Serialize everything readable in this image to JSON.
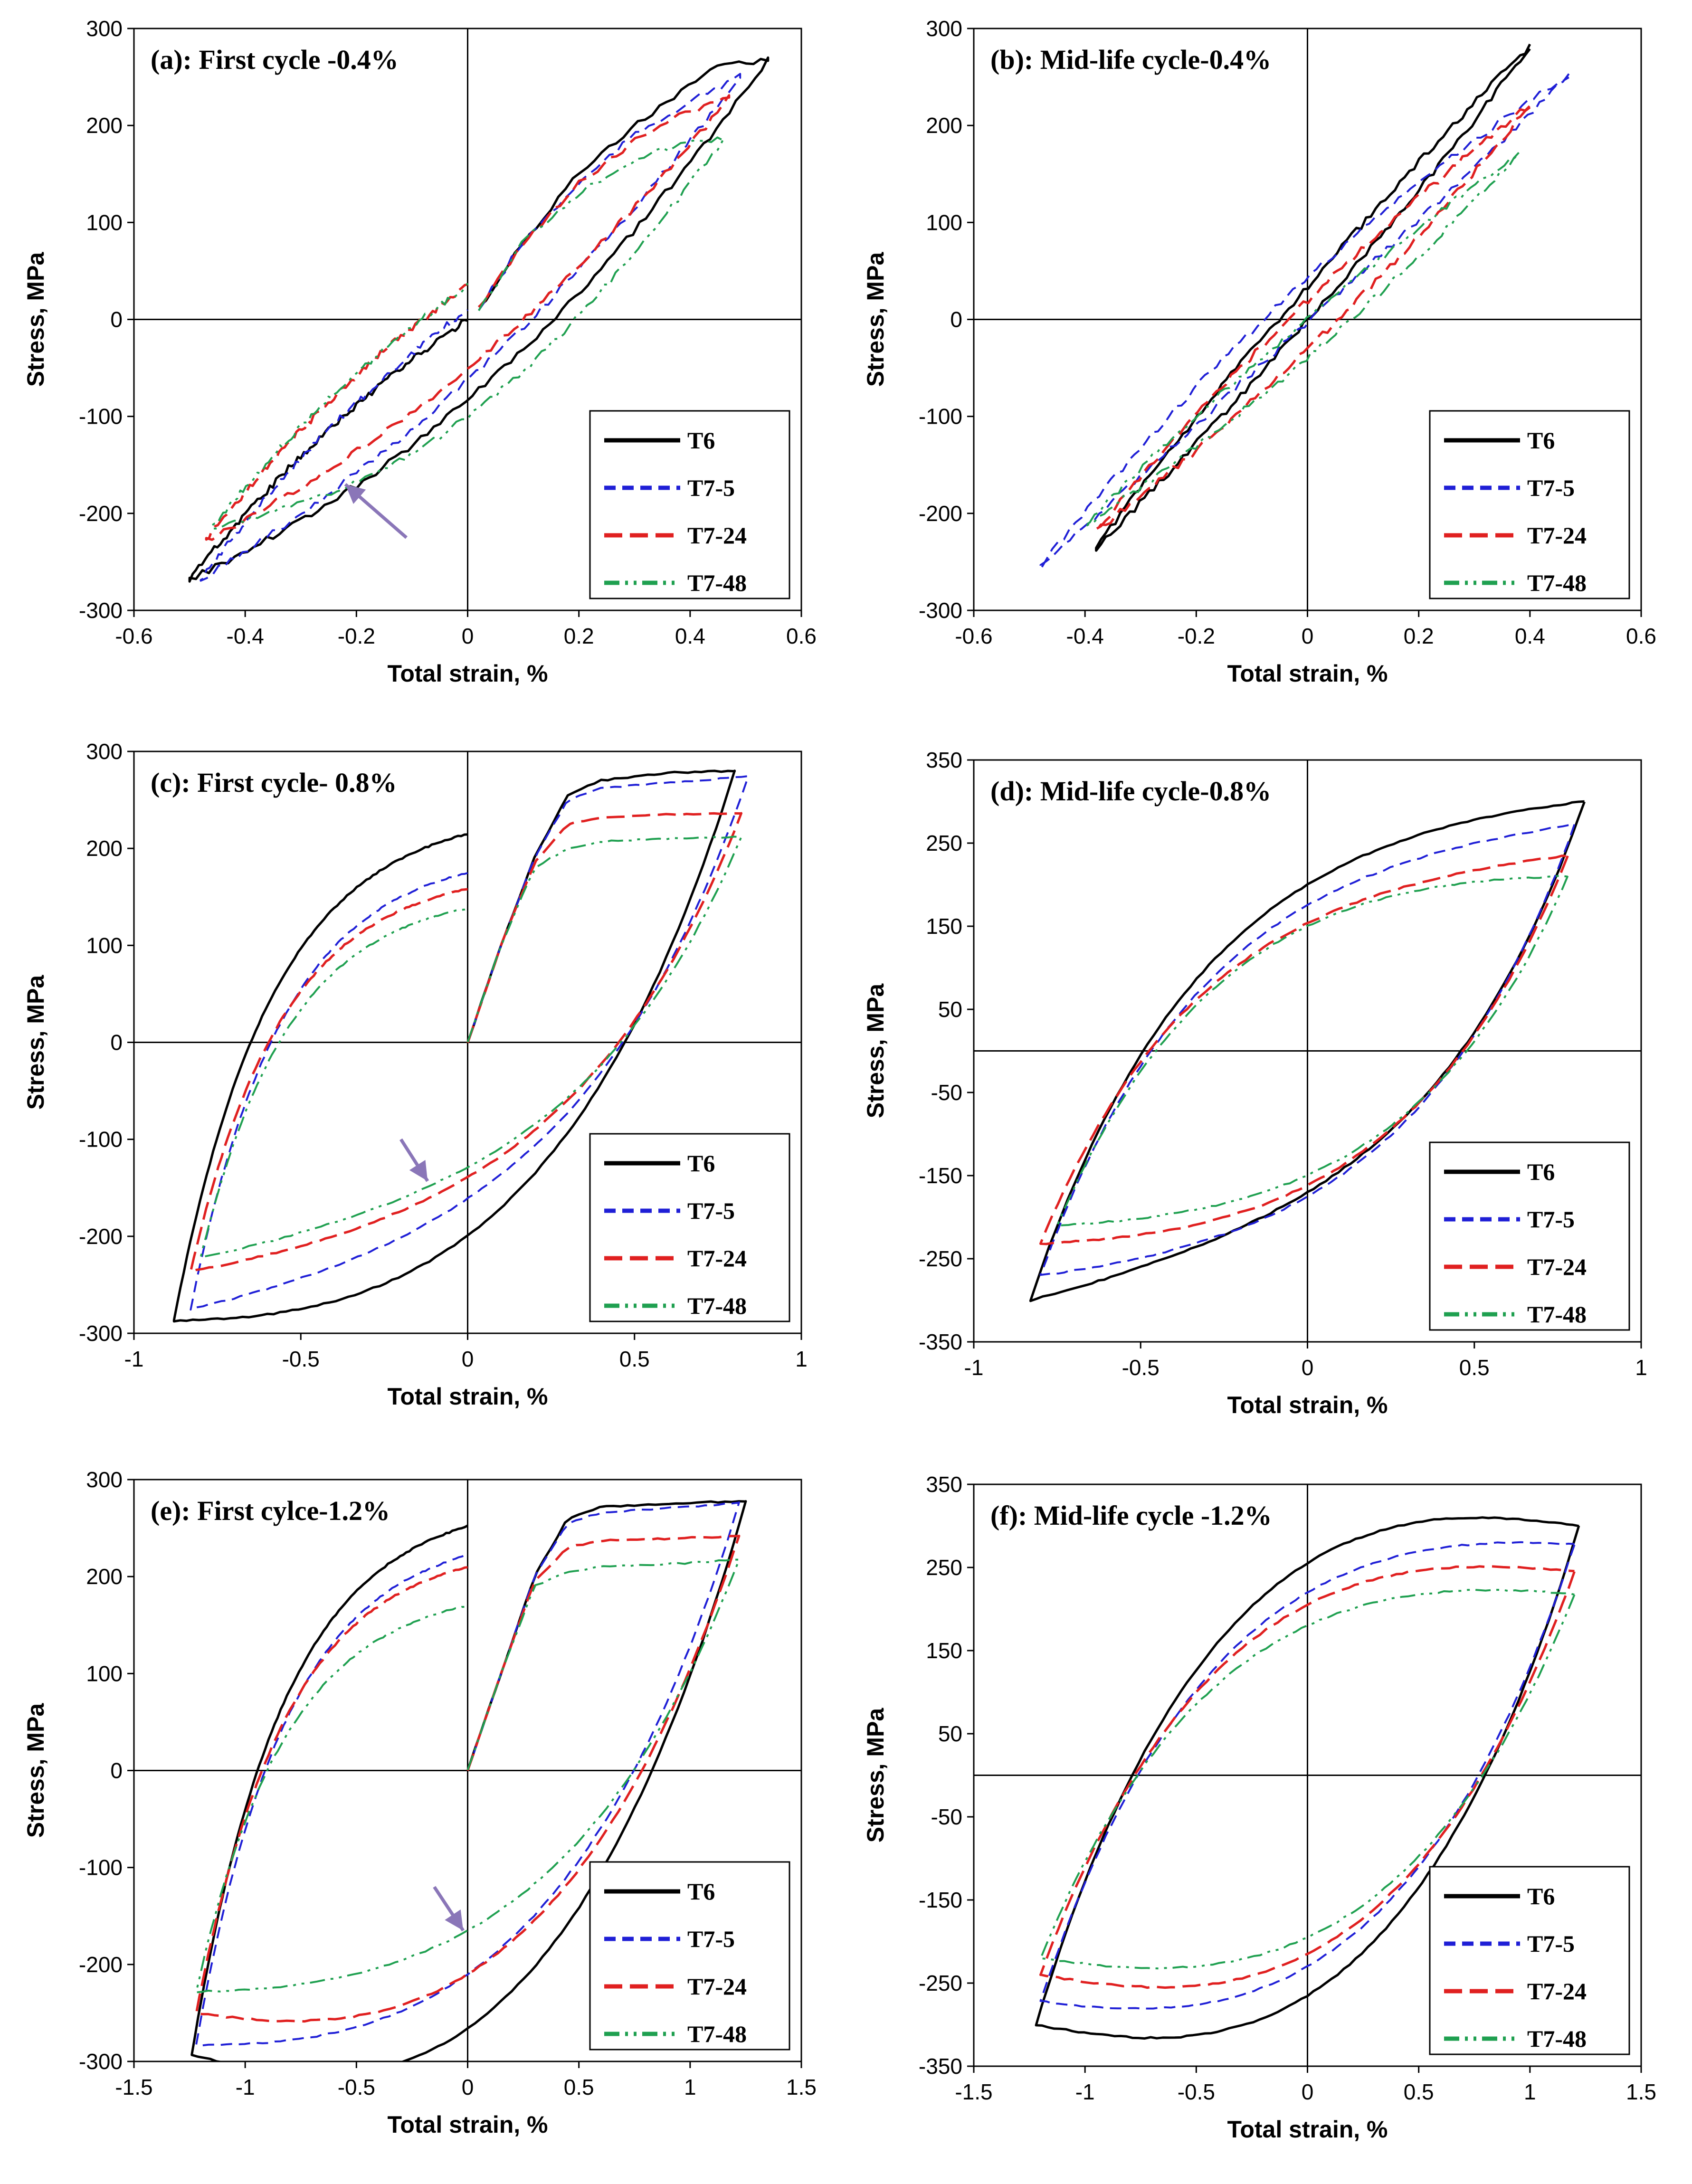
{
  "figure": {
    "description_type": "hysteresis loops",
    "colors": {
      "T6": "#000000",
      "T7-5": "#1f1fd6",
      "T7-24": "#e02020",
      "T7-48": "#1fa050",
      "arrow": "#8a76b8"
    }
  },
  "chart_data": [
    {
      "id": "a",
      "type": "line",
      "title": "(a): First cycle -0.4%",
      "xlabel": "Total strain, %",
      "ylabel": "Stress, MPa",
      "xlim": [
        -0.6,
        0.6
      ],
      "ylim": [
        -300,
        300
      ],
      "xticks": [
        -0.6,
        -0.4,
        -0.2,
        0,
        0.2,
        0.4,
        0.6
      ],
      "xtick_labels": [
        "-0.6",
        "-0.4",
        "-0.2",
        "0",
        "0.2",
        "0.4",
        "0.6"
      ],
      "yticks": [
        -300,
        -200,
        -100,
        0,
        100,
        200,
        300
      ],
      "ytick_labels": [
        "-300",
        "-200",
        "-100",
        "0",
        "100",
        "200",
        "300"
      ],
      "legend": [
        "T6",
        "T7-5",
        "T7-24",
        "T7-48"
      ],
      "legend_position": "bottom-right",
      "arrow": {
        "from": [
          -0.11,
          -225
        ],
        "to": [
          -0.22,
          -170
        ]
      },
      "series": [
        {
          "name": "T6",
          "tension_points": [
            [
              0.02,
              10
            ],
            [
              0.1,
              80
            ],
            [
              0.2,
              150
            ],
            [
              0.3,
              200
            ],
            [
              0.4,
              240
            ],
            [
              0.45,
              262
            ],
            [
              0.54,
              268
            ]
          ],
          "xmax": 0.54,
          "smax": 268,
          "xmin": -0.5,
          "smin": -268,
          "s0_down": -85,
          "s0_up": 0
        },
        {
          "name": "T7-5",
          "tension_points": [
            [
              0.02,
              10
            ],
            [
              0.1,
              80
            ],
            [
              0.2,
              140
            ],
            [
              0.3,
              190
            ],
            [
              0.4,
              225
            ],
            [
              0.49,
              250
            ]
          ],
          "xmax": 0.49,
          "smax": 250,
          "xmin": -0.48,
          "smin": -268,
          "s0_down": -60,
          "s0_up": 10
        },
        {
          "name": "T7-24",
          "tension_points": [
            [
              0.02,
              10
            ],
            [
              0.1,
              80
            ],
            [
              0.2,
              140
            ],
            [
              0.3,
              185
            ],
            [
              0.4,
              215
            ],
            [
              0.47,
              228
            ]
          ],
          "xmax": 0.47,
          "smax": 228,
          "xmin": -0.47,
          "smin": -228,
          "s0_down": -50,
          "s0_up": 35
        },
        {
          "name": "T7-48",
          "tension_points": [
            [
              0.02,
              10
            ],
            [
              0.1,
              80
            ],
            [
              0.2,
              130
            ],
            [
              0.3,
              165
            ],
            [
              0.4,
              182
            ],
            [
              0.46,
              186
            ]
          ],
          "xmax": 0.46,
          "smax": 186,
          "xmin": -0.46,
          "smin": -215,
          "s0_down": -100,
          "s0_up": 35
        }
      ]
    },
    {
      "id": "b",
      "type": "line",
      "title": "(b): Mid-life cycle-0.4%",
      "xlabel": "Total strain, %",
      "ylabel": "Stress, MPa",
      "xlim": [
        -0.6,
        0.6
      ],
      "ylim": [
        -300,
        300
      ],
      "xticks": [
        -0.6,
        -0.4,
        -0.2,
        0,
        0.2,
        0.4,
        0.6
      ],
      "xtick_labels": [
        "-0.6",
        "-0.4",
        "-0.2",
        "0",
        "0.2",
        "0.4",
        "0.6"
      ],
      "yticks": [
        -300,
        -200,
        -100,
        0,
        100,
        200,
        300
      ],
      "ytick_labels": [
        "-300",
        "-200",
        "-100",
        "0",
        "100",
        "200",
        "300"
      ],
      "legend": [
        "T6",
        "T7-5",
        "T7-24",
        "T7-48"
      ],
      "legend_position": "bottom-right",
      "series": [
        {
          "name": "T6",
          "xmax": 0.4,
          "smax": 282,
          "xmin": -0.38,
          "smin": -235,
          "s0_down": 0,
          "s0_up": 35
        },
        {
          "name": "T7-5",
          "xmax": 0.47,
          "smax": 253,
          "xmin": -0.48,
          "smin": -255,
          "s0_down": -5,
          "s0_up": 40
        },
        {
          "name": "T7-24",
          "xmax": 0.4,
          "smax": 222,
          "xmin": -0.38,
          "smin": -218,
          "s0_down": -30,
          "s0_up": 20
        },
        {
          "name": "T7-48",
          "xmax": 0.38,
          "smax": 172,
          "xmin": -0.4,
          "smin": -212,
          "s0_down": -40,
          "s0_up": 0
        }
      ]
    },
    {
      "id": "c",
      "type": "line",
      "title": "(c): First cycle- 0.8%",
      "xlabel": "Total strain, %",
      "ylabel": "Stress, MPa",
      "xlim": [
        -1,
        1
      ],
      "ylim": [
        -300,
        300
      ],
      "xticks": [
        -1,
        -0.5,
        0,
        0.5,
        1
      ],
      "xtick_labels": [
        "-1",
        "-0.5",
        "0",
        "0.5",
        "1"
      ],
      "yticks": [
        -300,
        -200,
        -100,
        0,
        100,
        200,
        300
      ],
      "ytick_labels": [
        "-300",
        "-200",
        "-100",
        "0",
        "100",
        "200",
        "300"
      ],
      "legend": [
        "T6",
        "T7-5",
        "T7-24",
        "T7-48"
      ],
      "legend_position": "bottom-right",
      "arrow": {
        "from": [
          -0.2,
          -100
        ],
        "to": [
          -0.12,
          -143
        ]
      },
      "series": [
        {
          "name": "T6",
          "tension_points": [
            [
              0,
              0
            ],
            [
              0.1,
              100
            ],
            [
              0.2,
              190
            ],
            [
              0.3,
              255
            ],
            [
              0.4,
              270
            ],
            [
              0.6,
              278
            ],
            [
              0.8,
              280
            ]
          ],
          "xmax": 0.8,
          "smax": 280,
          "xmin": -0.88,
          "smin": -287,
          "s0_down": -200,
          "s0_up": 215
        },
        {
          "name": "T7-5",
          "tension_points": [
            [
              0,
              0
            ],
            [
              0.1,
              100
            ],
            [
              0.2,
              190
            ],
            [
              0.3,
              250
            ],
            [
              0.4,
              262
            ],
            [
              0.6,
              268
            ],
            [
              0.84,
              274
            ]
          ],
          "xmax": 0.84,
          "smax": 274,
          "xmin": -0.83,
          "smin": -275,
          "s0_down": -160,
          "s0_up": 175
        },
        {
          "name": "T7-24",
          "tension_points": [
            [
              0,
              0
            ],
            [
              0.1,
              100
            ],
            [
              0.2,
              185
            ],
            [
              0.3,
              225
            ],
            [
              0.4,
              232
            ],
            [
              0.6,
              235
            ],
            [
              0.82,
              236
            ]
          ],
          "xmax": 0.82,
          "smax": 236,
          "xmin": -0.83,
          "smin": -236,
          "s0_down": -140,
          "s0_up": 158
        },
        {
          "name": "T7-48",
          "tension_points": [
            [
              0,
              0
            ],
            [
              0.1,
              100
            ],
            [
              0.2,
              180
            ],
            [
              0.3,
              200
            ],
            [
              0.4,
              207
            ],
            [
              0.6,
              210
            ],
            [
              0.82,
              212
            ]
          ],
          "xmax": 0.82,
          "smax": 212,
          "xmin": -0.8,
          "smin": -222,
          "s0_down": -130,
          "s0_up": 138
        }
      ]
    },
    {
      "id": "d",
      "type": "line",
      "title": "(d): Mid-life cycle-0.8%",
      "xlabel": "Total strain, %",
      "ylabel": "Stress, MPa",
      "xlim": [
        -1,
        1
      ],
      "ylim": [
        -350,
        350
      ],
      "xticks": [
        -1,
        -0.5,
        0,
        0.5,
        1
      ],
      "xtick_labels": [
        "-1",
        "-0.5",
        "0",
        "0.5",
        "1"
      ],
      "yticks": [
        -350,
        -250,
        -150,
        -50,
        50,
        150,
        250,
        350
      ],
      "ytick_labels": [
        "-350",
        "-250",
        "-150",
        "-50",
        "50",
        "150",
        "250",
        "350"
      ],
      "legend": [
        "T6",
        "T7-5",
        "T7-24",
        "T7-48"
      ],
      "legend_position": "bottom-right",
      "series": [
        {
          "name": "T6",
          "xmax": 0.83,
          "smax": 300,
          "xmin": -0.83,
          "smin": -300,
          "s0_down": -170,
          "s0_up": 200
        },
        {
          "name": "T7-5",
          "xmax": 0.8,
          "smax": 272,
          "xmin": -0.8,
          "smin": -270,
          "s0_down": -175,
          "s0_up": 175
        },
        {
          "name": "T7-24",
          "xmax": 0.78,
          "smax": 235,
          "xmin": -0.8,
          "smin": -232,
          "s0_down": -160,
          "s0_up": 155
        },
        {
          "name": "T7-48",
          "xmax": 0.78,
          "smax": 210,
          "xmin": -0.75,
          "smin": -210,
          "s0_down": -150,
          "s0_up": 150
        }
      ]
    },
    {
      "id": "e",
      "type": "line",
      "title": "(e): First cylce-1.2%",
      "xlabel": "Total strain, %",
      "ylabel": "Stress, MPa",
      "xlim": [
        -1.5,
        1.5
      ],
      "ylim": [
        -300,
        300
      ],
      "xticks": [
        -1.5,
        -1,
        -0.5,
        0,
        0.5,
        1,
        1.5
      ],
      "xtick_labels": [
        "-1.5",
        "-1",
        "-0.5",
        "0",
        "0.5",
        "1",
        "1.5"
      ],
      "yticks": [
        -300,
        -200,
        -100,
        0,
        100,
        200,
        300
      ],
      "ytick_labels": [
        "-300",
        "-200",
        "-100",
        "0",
        "100",
        "200",
        "300"
      ],
      "legend": [
        "T6",
        "T7-5",
        "T7-24",
        "T7-48"
      ],
      "legend_position": "bottom-right",
      "arrow": {
        "from": [
          -0.15,
          -120
        ],
        "to": [
          -0.02,
          -165
        ]
      },
      "series": [
        {
          "name": "T6",
          "tension_points": [
            [
              0,
              0
            ],
            [
              0.15,
              100
            ],
            [
              0.3,
              200
            ],
            [
              0.45,
              260
            ],
            [
              0.6,
              272
            ],
            [
              1.0,
              276
            ],
            [
              1.25,
              278
            ]
          ],
          "xmax": 1.25,
          "smax": 278,
          "xmin": -1.24,
          "smin": -293,
          "s0_down": -265,
          "s0_up": 252
        },
        {
          "name": "T7-5",
          "tension_points": [
            [
              0,
              0
            ],
            [
              0.15,
              100
            ],
            [
              0.3,
              200
            ],
            [
              0.45,
              255
            ],
            [
              0.6,
              266
            ],
            [
              1.0,
              272
            ],
            [
              1.22,
              276
            ]
          ],
          "xmax": 1.22,
          "smax": 276,
          "xmin": -1.22,
          "smin": -283,
          "s0_down": -210,
          "s0_up": 222
        },
        {
          "name": "T7-24",
          "tension_points": [
            [
              0,
              0
            ],
            [
              0.15,
              100
            ],
            [
              0.3,
              195
            ],
            [
              0.45,
              230
            ],
            [
              0.6,
              237
            ],
            [
              1.0,
              240
            ],
            [
              1.22,
              242
            ]
          ],
          "xmax": 1.22,
          "smax": 242,
          "xmin": -1.22,
          "smin": -250,
          "s0_down": -210,
          "s0_up": 210
        },
        {
          "name": "T7-48",
          "tension_points": [
            [
              0,
              0
            ],
            [
              0.15,
              100
            ],
            [
              0.3,
              190
            ],
            [
              0.45,
              205
            ],
            [
              0.6,
              210
            ],
            [
              1.0,
              214
            ],
            [
              1.22,
              218
            ]
          ],
          "xmax": 1.22,
          "smax": 218,
          "xmin": -1.22,
          "smin": -228,
          "s0_down": -165,
          "s0_up": 170
        }
      ]
    },
    {
      "id": "f",
      "type": "line",
      "title": "(f): Mid-life cycle -1.2%",
      "xlabel": "Total strain, %",
      "ylabel": "Stress, MPa",
      "xlim": [
        -1.5,
        1.5
      ],
      "ylim": [
        -350,
        350
      ],
      "xticks": [
        -1.5,
        -1,
        -0.5,
        0,
        0.5,
        1,
        1.5
      ],
      "xtick_labels": [
        "-1.5",
        "-1",
        "-0.5",
        "0",
        "0.5",
        "1",
        "1.5"
      ],
      "yticks": [
        -350,
        -250,
        -150,
        -50,
        50,
        150,
        250,
        350
      ],
      "ytick_labels": [
        "-350",
        "-250",
        "-150",
        "-50",
        "50",
        "150",
        "250",
        "350"
      ],
      "legend": [
        "T6",
        "T7-5",
        "T7-24",
        "T7-48"
      ],
      "legend_position": "bottom-right",
      "series": [
        {
          "name": "T6",
          "xmax": 1.22,
          "smax": 300,
          "xmin": -1.22,
          "smin": -300,
          "s0_down": -265,
          "s0_up": 255
        },
        {
          "name": "T7-5",
          "xmax": 1.2,
          "smax": 278,
          "xmin": -1.2,
          "smin": -272,
          "s0_down": -230,
          "s0_up": 220
        },
        {
          "name": "T7-24",
          "xmax": 1.2,
          "smax": 245,
          "xmin": -1.2,
          "smin": -240,
          "s0_down": -215,
          "s0_up": 205
        },
        {
          "name": "T7-48",
          "xmax": 1.2,
          "smax": 218,
          "xmin": -1.2,
          "smin": -220,
          "s0_down": -195,
          "s0_up": 180
        }
      ]
    }
  ]
}
